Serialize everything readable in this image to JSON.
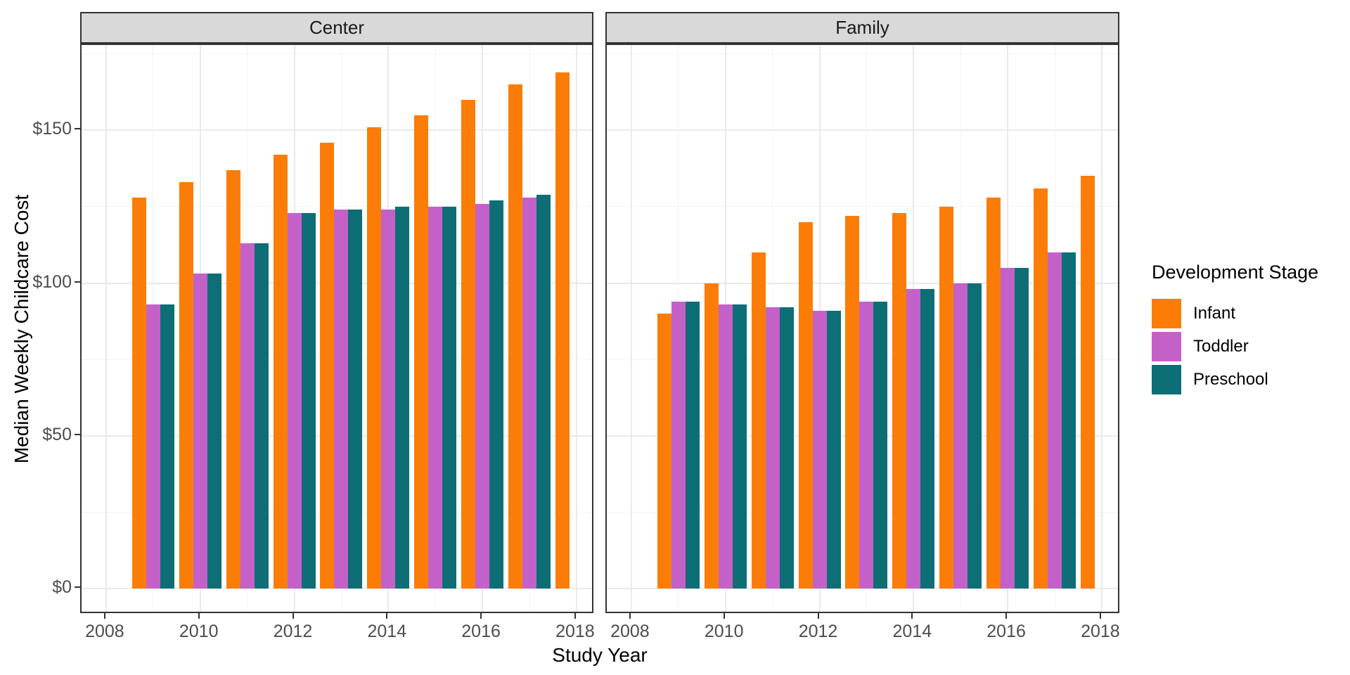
{
  "chart_data": {
    "type": "bar",
    "title": "",
    "xlabel": "Study Year",
    "ylabel": "Median Weekly Childcare Cost",
    "years": [
      2009,
      2010,
      2011,
      2012,
      2013,
      2014,
      2015,
      2016,
      2017,
      2018
    ],
    "x_axis": {
      "tick_years": [
        2008,
        2010,
        2012,
        2014,
        2016,
        2018
      ],
      "tick_labels": [
        "2008",
        "2010",
        "2012",
        "2014",
        "2016",
        "2018"
      ]
    },
    "y_axis": {
      "ticks": [
        {
          "value": 0,
          "label": "$0"
        },
        {
          "value": 50,
          "label": "$50"
        },
        {
          "value": 100,
          "label": "$100"
        },
        {
          "value": 150,
          "label": "$150"
        }
      ],
      "minor_ticks": [
        25,
        75,
        125,
        175
      ],
      "ylim": [
        0,
        178
      ],
      "grid": true
    },
    "legend": {
      "title": "Development Stage",
      "position": "right",
      "entries": [
        {
          "label": "Infant",
          "color": "#FB7D07"
        },
        {
          "label": "Toddler",
          "color": "#C461C9"
        },
        {
          "label": "Preschool",
          "color": "#0D6E75"
        }
      ]
    },
    "facets": [
      {
        "label": "Center",
        "series": [
          {
            "name": "Infant",
            "values": [
              128,
              133,
              137,
              142,
              146,
              151,
              155,
              160,
              165,
              169
            ]
          },
          {
            "name": "Toddler",
            "values": [
              93,
              103,
              113,
              123,
              124,
              124,
              125,
              126,
              128,
              null
            ]
          },
          {
            "name": "Preschool",
            "values": [
              93,
              103,
              113,
              123,
              124,
              125,
              125,
              127,
              129,
              null
            ]
          }
        ]
      },
      {
        "label": "Family",
        "series": [
          {
            "name": "Infant",
            "values": [
              90,
              100,
              110,
              120,
              122,
              123,
              125,
              128,
              131,
              135
            ]
          },
          {
            "name": "Toddler",
            "values": [
              94,
              93,
              92,
              91,
              94,
              98,
              100,
              105,
              110,
              null
            ]
          },
          {
            "name": "Preschool",
            "values": [
              94,
              93,
              92,
              91,
              94,
              98,
              100,
              105,
              110,
              null
            ]
          }
        ]
      }
    ],
    "theme": {
      "strip_bg": "#D9D9D9",
      "panel_border": "#333333",
      "grid_major": "#EAEAEA",
      "grid_minor": "#F4F4F4",
      "tick_label_color": "#4D4D4D",
      "text_color": "#000000",
      "background": "#FFFFFF"
    }
  }
}
